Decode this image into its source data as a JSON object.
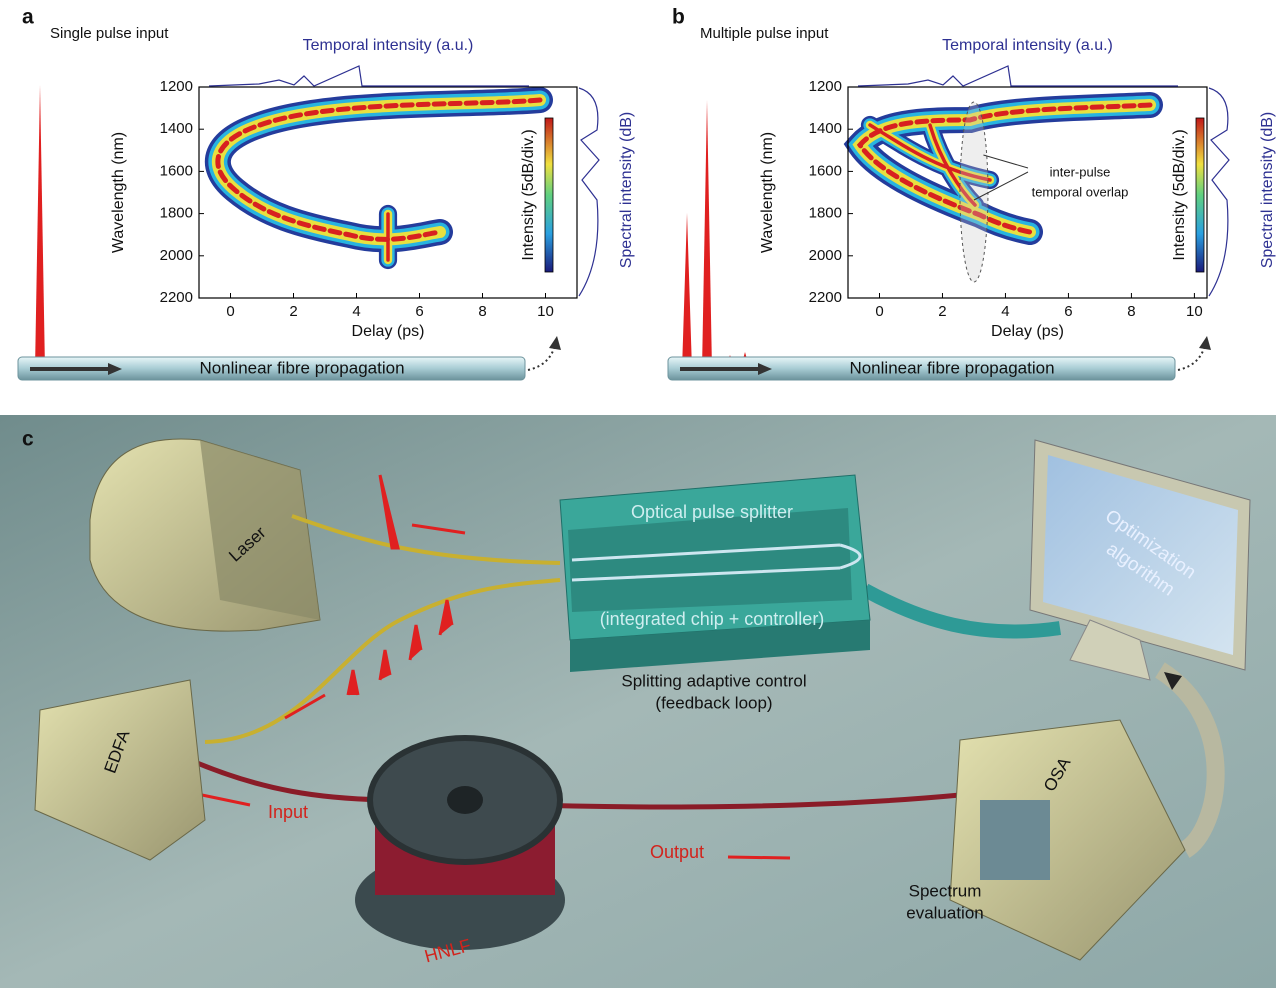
{
  "panels": [
    {
      "label": "a",
      "title": "Single pulse input",
      "top_axis_label": "Temporal intensity (a.u.)",
      "y_axis_label": "Wavelength (nm)",
      "x_axis_label": "Delay (ps)",
      "colorbar_label": "Intensity (5dB/div.)",
      "right_axis_label": "Spectral intensity (dB)",
      "fibre_label": "Nonlinear fibre propagation",
      "xlim": [
        -1,
        11
      ],
      "ylim": [
        2200,
        1200
      ],
      "xticks": [
        0,
        2,
        4,
        6,
        8,
        10
      ],
      "yticks": [
        1200,
        1400,
        1600,
        1800,
        2000,
        2200
      ]
    },
    {
      "label": "b",
      "title": "Multiple pulse input",
      "top_axis_label": "Temporal intensity (a.u.)",
      "y_axis_label": "Wavelength (nm)",
      "x_axis_label": "Delay (ps)",
      "colorbar_label": "Intensity (5dB/div.)",
      "right_axis_label": "Spectral intensity (dB)",
      "fibre_label": "Nonlinear fibre propagation",
      "annotation": [
        "inter-pulse",
        "temporal overlap"
      ],
      "xlim": [
        -1,
        10.4
      ],
      "ylim": [
        2200,
        1200
      ],
      "xticks": [
        0,
        2,
        4,
        6,
        8,
        10
      ],
      "yticks": [
        1200,
        1400,
        1600,
        1800,
        2000,
        2200
      ]
    }
  ],
  "setup": {
    "label": "c",
    "laser": "Laser",
    "splitter_title": "Optical pulse splitter",
    "splitter_subtitle": "(integrated chip + controller)",
    "control": [
      "Splitting adaptive control",
      "(feedback loop)"
    ],
    "edfa": "EDFA",
    "input": "Input",
    "hnlf": "HNLF",
    "output": "Output",
    "osa": "OSA",
    "evaluation": [
      "Spectrum",
      "evaluation"
    ],
    "computer": [
      "Optimization",
      "algorithm"
    ]
  }
}
